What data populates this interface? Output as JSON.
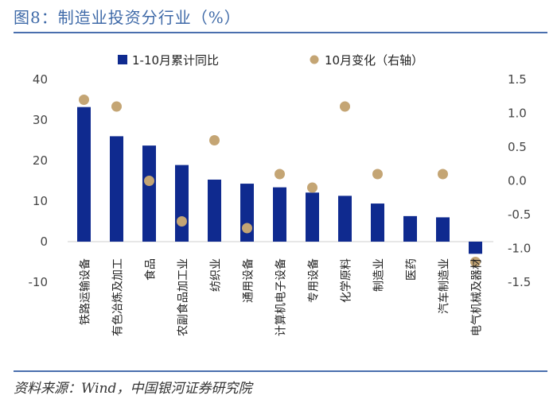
{
  "header": {
    "title": "图8：制造业投资分行业（%）"
  },
  "footer": {
    "source": "资料来源：Wind，中国银河证券研究院"
  },
  "colors": {
    "bar": "#0f2a8f",
    "dot": "#c4a574",
    "rule": "#4a6fae"
  },
  "chart_data": {
    "type": "bar",
    "categories": [
      "铁路运输设备",
      "有色冶炼及加工",
      "食品",
      "农副食品加工业",
      "纺织业",
      "通用设备",
      "计算机电子设备",
      "专用设备",
      "化学原料",
      "制造业",
      "医药",
      "汽车制造业",
      "电气机械及器材"
    ],
    "series": [
      {
        "name": "1-10月累计同比",
        "type": "bar",
        "axis": "left",
        "values": [
          33.2,
          26.0,
          23.7,
          18.9,
          15.3,
          14.3,
          13.4,
          12.1,
          11.3,
          9.4,
          6.3,
          6.0,
          -3.0
        ]
      },
      {
        "name": "10月变化（右轴）",
        "type": "scatter",
        "axis": "right",
        "values": [
          1.2,
          1.1,
          0.0,
          -0.6,
          0.6,
          -0.7,
          0.1,
          -0.1,
          1.1,
          0.1,
          null,
          0.1,
          -1.2
        ]
      }
    ],
    "ylim": [
      -10,
      40
    ],
    "yticks": [
      "40",
      "30",
      "20",
      "10",
      "0",
      "-10"
    ],
    "y2lim": [
      -1.5,
      1.5
    ],
    "y2ticks": [
      "1.5",
      "1.0",
      "0.5",
      "0.0",
      "-0.5",
      "-1.0",
      "-1.5"
    ],
    "legend": "top"
  }
}
